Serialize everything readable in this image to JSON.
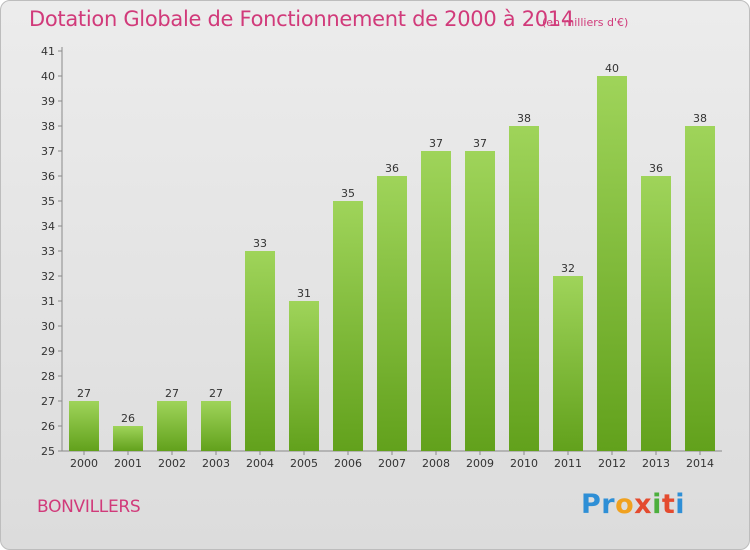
{
  "chart_data": {
    "type": "bar",
    "title": "Dotation Globale de Fonctionnement de 2000 à 2014",
    "subtitle": "(en milliers d'€)",
    "categories": [
      "2000",
      "2001",
      "2002",
      "2003",
      "2004",
      "2005",
      "2006",
      "2007",
      "2008",
      "2009",
      "2010",
      "2011",
      "2012",
      "2013",
      "2014"
    ],
    "values": [
      27,
      26,
      27,
      27,
      33,
      31,
      35,
      36,
      37,
      37,
      38,
      32,
      40,
      36,
      38
    ],
    "xlabel": "",
    "ylabel": "",
    "ylim": [
      25,
      41
    ],
    "yticks": [
      25,
      26,
      27,
      28,
      29,
      30,
      31,
      32,
      33,
      34,
      35,
      36,
      37,
      38,
      39,
      40,
      41
    ],
    "grid": false,
    "bar_color_top": "#9fd45a",
    "bar_color_bottom": "#62a11c",
    "accent_color": "#d13a7a"
  },
  "footer": {
    "commune": "BONVILLERS",
    "logo": {
      "p1": "Pr",
      "p2": "o",
      "p3": "x",
      "p4": "i",
      "p5": "t",
      "p6": "i"
    }
  }
}
